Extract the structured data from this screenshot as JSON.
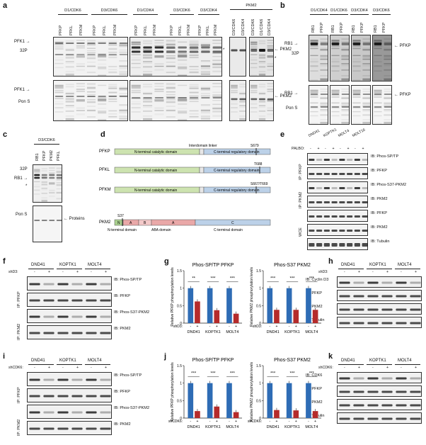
{
  "panels": {
    "a": {
      "letter": "a",
      "headers": [
        "D1/CDK6",
        "D3/CDK6",
        "D1/CDK4",
        "D3/CDK6",
        "D3/CDK4",
        "PKM2"
      ],
      "lanes": [
        "PFKP",
        "PFKL",
        "PFKM",
        "PFKP",
        "PFKL",
        "PFKM",
        "PFKP",
        "PFKL",
        "PFKM",
        "PFKP",
        "PFKL",
        "PFKM",
        "PFKP",
        "PFKL",
        "PFKM"
      ],
      "pkm2_lanes": [
        "D3/CDK6",
        "D3/CDK4",
        "D3/CDK6",
        "D1/CDK6",
        "D3/CDK4"
      ],
      "left_top": [
        "PFK1",
        "32P"
      ],
      "left_bottom": [
        "PFK1",
        "Pon S"
      ],
      "right_top": "PKM2",
      "right_bottom": "PKM2",
      "star": "*"
    },
    "b": {
      "letter": "b",
      "headers": [
        "D1/CDK4",
        "D1/CDK6",
        "D3/CDK4",
        "D3/CDK6"
      ],
      "lanes": [
        "RB1",
        "PFKP",
        "RB1",
        "PFKP",
        "RB1",
        "PFKP",
        "RB1",
        "PFKP"
      ],
      "left_top": [
        "RB1",
        "32P"
      ],
      "left_bottom": [
        "RB1",
        "Pon S"
      ],
      "right_top": "PFKP",
      "right_bottom": "PFKP"
    },
    "c": {
      "letter": "c",
      "header": "D3/CDK6",
      "lanes": [
        "RB1",
        "PFKP",
        "PKM2",
        "PFKL"
      ],
      "left_top": [
        "32P",
        "RB1",
        "*"
      ],
      "left_bottom": "Pon S",
      "right_bottom": "Proteins"
    },
    "d": {
      "letter": "d",
      "rows": [
        {
          "name": "PFKP",
          "n": "N-terminal catalytic domain",
          "c": "C-terminal regulatory domain",
          "site": "S679",
          "extra": "Interdomain linker"
        },
        {
          "name": "PFKL",
          "n": "N-terminal catalytic domain",
          "c": "C-terminal regulatory domain",
          "site": "T688"
        },
        {
          "name": "PFKM",
          "n": "N-terminal catalytic domain",
          "c": "C-terminal regulatory domain",
          "site": "S667/T669"
        },
        {
          "name": "PKM2",
          "segments": [
            "N",
            "A",
            "B",
            "A",
            "C"
          ],
          "site": "S37",
          "labels": [
            "N-terminal domain",
            "ABA domain",
            "C-terminal domain"
          ]
        }
      ]
    },
    "e": {
      "letter": "e",
      "cells": [
        "DND41",
        "KOPTK1",
        "MOLT4",
        "MOLT16"
      ],
      "palbo_label": "PALBO:",
      "signs": [
        "-",
        "+",
        "-",
        "+",
        "-",
        "+",
        "-",
        "+"
      ],
      "rows": [
        "IB: Phos-SP/TP",
        "IB: PFKP",
        "IB: Phos-S37-PKM2",
        "IB: PKM2",
        "IB: PFKP",
        "IB: PKM2",
        "IB: Tubulin"
      ],
      "groups": [
        "IP: PFKP",
        "IP: PKM2",
        "WCE"
      ]
    },
    "f": {
      "letter": "f",
      "cells": [
        "DND41",
        "KOPTK1",
        "MOLT4"
      ],
      "sh_label": "shD3:",
      "signs": [
        "-",
        "+",
        "-",
        "+",
        "-",
        "+"
      ],
      "rows": [
        "IB: Phos-SP/TP",
        "IB: PFKP",
        "IB: Phos-S37-PKM2",
        "IB: PKM2"
      ],
      "groups": [
        "IP: PFKP",
        "IP: PKM2"
      ]
    },
    "h": {
      "letter": "h",
      "cells": [
        "DND41",
        "KOPTK1",
        "MOLT4"
      ],
      "sh_label": "shD3:",
      "signs": [
        "-",
        "+",
        "-",
        "+",
        "-",
        "+"
      ],
      "rows": [
        "IB: Cyclin D3",
        "IB: PFKP",
        "IB: PKM2",
        "IB: Tubulin"
      ]
    },
    "i": {
      "letter": "i",
      "cells": [
        "DND41",
        "KOPTK1",
        "MOLT4"
      ],
      "sh_label": "shCDK6:",
      "signs": [
        "-",
        "+",
        "-",
        "+",
        "-",
        "+"
      ],
      "rows": [
        "IB: Phos-SP/TP",
        "IB: PFKP",
        "IB: Phos-S37-PKM2",
        "IB: PKM2"
      ],
      "groups": [
        "IP: PFKP",
        "IP: PKM2"
      ]
    },
    "k": {
      "letter": "k",
      "cells": [
        "DND41",
        "KOPTK1",
        "MOLT4"
      ],
      "sh_label": "shCDK6:",
      "signs": [
        "-",
        "+",
        "-",
        "+",
        "-",
        "+"
      ],
      "rows": [
        "IB: CDK6",
        "IB: PFKP",
        "IB: PKM2",
        "IB: Tubulin"
      ]
    }
  },
  "chart_data": [
    {
      "panel": "g",
      "type": "bar",
      "title": "Phos-SP/TP PFKP",
      "ylabel": "Relative PFKP phosphorylation levels",
      "ylim": [
        0,
        1.5
      ],
      "yticks": [
        0,
        0.5,
        1,
        1.5
      ],
      "categories": [
        "DND41",
        "KOPTK1",
        "MOLT4"
      ],
      "treatment_label": "shD3:",
      "series": [
        {
          "name": "-",
          "values": [
            1.0,
            1.0,
            1.0
          ]
        },
        {
          "name": "+",
          "values": [
            0.62,
            0.37,
            0.27
          ]
        }
      ],
      "significance": [
        "**",
        "***",
        "***"
      ],
      "colors": [
        "#2e6cb5",
        "#b52b2b"
      ]
    },
    {
      "panel": "g",
      "type": "bar",
      "title": "Phos-S37 PKM2",
      "ylabel": "Relative PKM2 phosphorylation levels",
      "ylim": [
        0,
        1.5
      ],
      "yticks": [
        0,
        0.5,
        1,
        1.5
      ],
      "categories": [
        "DND41",
        "KOPTK1",
        "MOLT4"
      ],
      "treatment_label": "shD3:",
      "series": [
        {
          "name": "-",
          "values": [
            1.0,
            1.0,
            1.0
          ]
        },
        {
          "name": "+",
          "values": [
            0.38,
            0.38,
            0.38
          ]
        }
      ],
      "significance": [
        "***",
        "***",
        "***"
      ],
      "colors": [
        "#2e6cb5",
        "#b52b2b"
      ]
    },
    {
      "panel": "j",
      "type": "bar",
      "title": "Phos-SP/TP PFKP",
      "ylabel": "Relative PFKP phosphorylation levels",
      "ylim": [
        0,
        1.5
      ],
      "yticks": [
        0,
        0.5,
        1,
        1.5
      ],
      "categories": [
        "DND41",
        "KOPTK1",
        "MOLT4"
      ],
      "treatment_label": "shCDK6:",
      "series": [
        {
          "name": "-",
          "values": [
            1.0,
            1.0,
            1.0
          ]
        },
        {
          "name": "+",
          "values": [
            0.2,
            0.33,
            0.17
          ]
        }
      ],
      "significance": [
        "***",
        "***",
        "***"
      ],
      "colors": [
        "#2e6cb5",
        "#b52b2b"
      ]
    },
    {
      "panel": "j",
      "type": "bar",
      "title": "Phos-S37 PKM2",
      "ylabel": "Relative PKM2 phosphorylation levels",
      "ylim": [
        0,
        1.5
      ],
      "yticks": [
        0,
        0.5,
        1,
        1.5
      ],
      "categories": [
        "DND41",
        "KOPTK1",
        "MOLT4"
      ],
      "treatment_label": "shCDK6:",
      "series": [
        {
          "name": "-",
          "values": [
            1.0,
            1.0,
            1.0
          ]
        },
        {
          "name": "+",
          "values": [
            0.23,
            0.22,
            0.2
          ]
        }
      ],
      "significance": [
        "***",
        "***",
        "***"
      ],
      "colors": [
        "#2e6cb5",
        "#b52b2b"
      ]
    }
  ]
}
